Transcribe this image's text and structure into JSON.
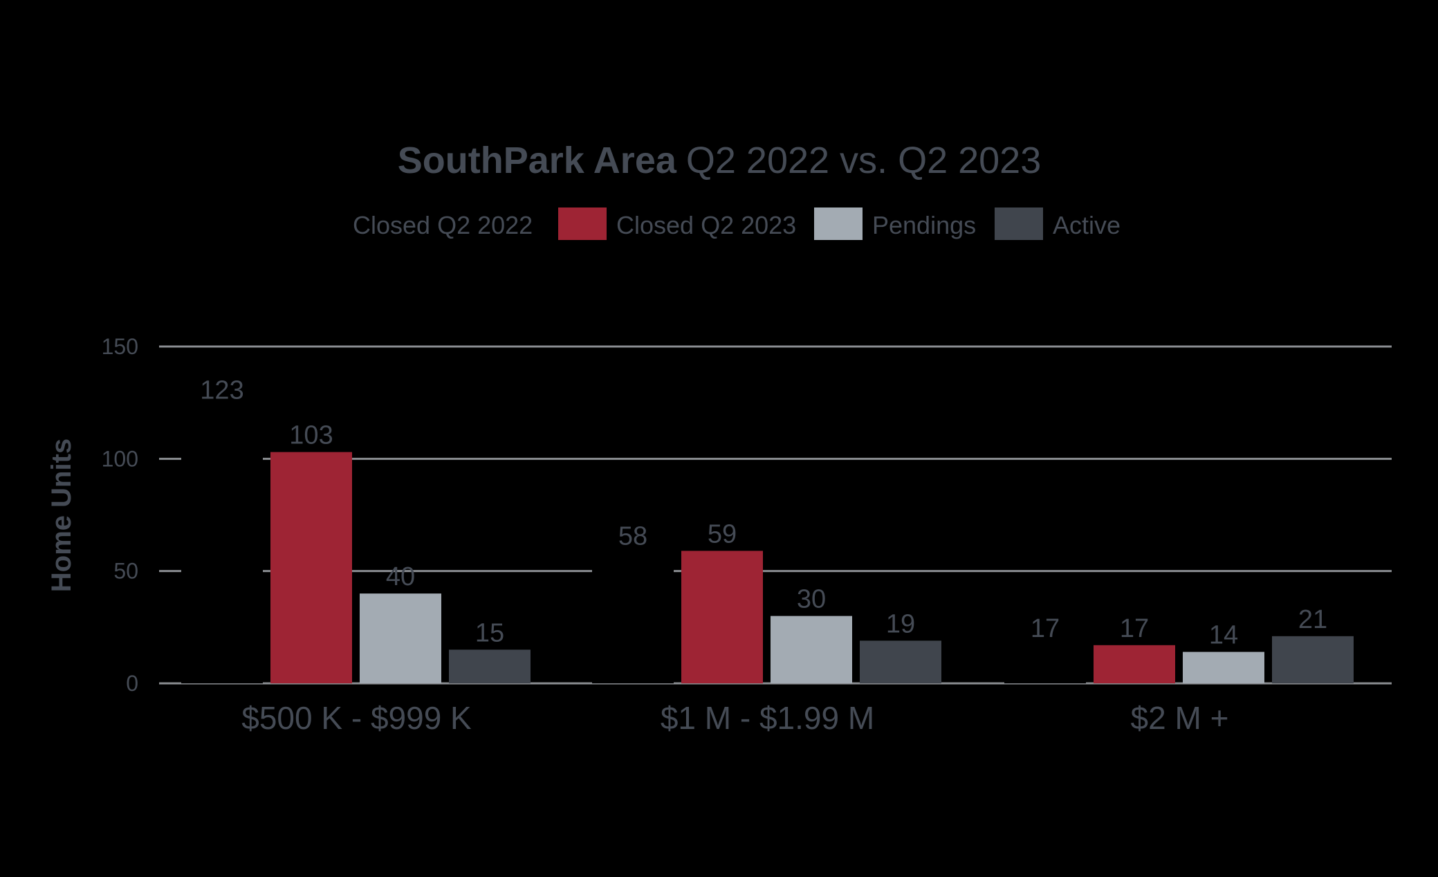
{
  "chart_data": {
    "type": "bar",
    "title_bold": "SouthPark Area",
    "title_rest": "Q2 2022 vs. Q2 2023",
    "ylabel": "Home Units",
    "xlabel": "",
    "ylim": [
      0,
      150
    ],
    "yticks": [
      0,
      50,
      100,
      150
    ],
    "grid": true,
    "legend_position": "top",
    "categories": [
      "$500 K - $999 K",
      "$1 M - $1.99 M",
      "$2 M +"
    ],
    "series": [
      {
        "name": "Closed Q2 2022",
        "values": [
          123,
          58,
          17
        ],
        "color": "#000000"
      },
      {
        "name": "Closed Q2 2023",
        "values": [
          103,
          59,
          17
        ],
        "color": "#9e2434"
      },
      {
        "name": "Pendings",
        "values": [
          40,
          30,
          14
        ],
        "color": "#a3abb3"
      },
      {
        "name": "Active",
        "values": [
          15,
          19,
          21
        ],
        "color": "#40454d"
      }
    ],
    "text_color": "#454b55",
    "grid_color": "#8a8d91"
  }
}
